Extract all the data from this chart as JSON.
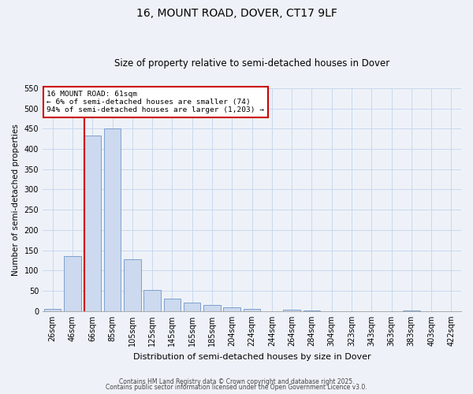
{
  "title": "16, MOUNT ROAD, DOVER, CT17 9LF",
  "subtitle": "Size of property relative to semi-detached houses in Dover",
  "xlabel": "Distribution of semi-detached houses by size in Dover",
  "ylabel": "Number of semi-detached properties",
  "bin_labels": [
    "26sqm",
    "46sqm",
    "66sqm",
    "85sqm",
    "105sqm",
    "125sqm",
    "145sqm",
    "165sqm",
    "185sqm",
    "204sqm",
    "224sqm",
    "244sqm",
    "264sqm",
    "284sqm",
    "304sqm",
    "323sqm",
    "343sqm",
    "363sqm",
    "383sqm",
    "403sqm",
    "422sqm"
  ],
  "bar_values": [
    6,
    135,
    433,
    450,
    128,
    53,
    30,
    22,
    16,
    10,
    5,
    0,
    3,
    1,
    0,
    0,
    0,
    0,
    1,
    0,
    0
  ],
  "bar_color": "#ccd9ee",
  "bar_edge_color": "#7096c8",
  "grid_color": "#c8d8ee",
  "background_color": "#eef2f8",
  "property_line_bin_idx": 2,
  "annotation_title": "16 MOUNT ROAD: 61sqm",
  "annotation_line1": "← 6% of semi-detached houses are smaller (74)",
  "annotation_line2": "94% of semi-detached houses are larger (1,203) →",
  "annotation_box_facecolor": "#ffffff",
  "annotation_box_edgecolor": "#cc0000",
  "vline_color": "#cc0000",
  "ylim": [
    0,
    550
  ],
  "yticks": [
    0,
    50,
    100,
    150,
    200,
    250,
    300,
    350,
    400,
    450,
    500,
    550
  ],
  "footer_line1": "Contains HM Land Registry data © Crown copyright and database right 2025.",
  "footer_line2": "Contains public sector information licensed under the Open Government Licence v3.0.",
  "title_fontsize": 10,
  "subtitle_fontsize": 8.5,
  "ylabel_fontsize": 7.5,
  "xlabel_fontsize": 8,
  "tick_fontsize": 7,
  "footer_fontsize": 5.5,
  "annotation_fontsize": 6.8
}
